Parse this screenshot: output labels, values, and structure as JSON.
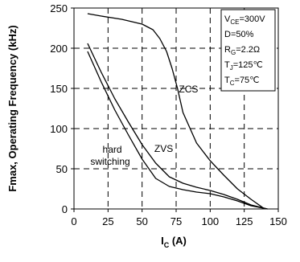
{
  "chart_data": {
    "type": "line",
    "xlabel_main": "I",
    "xlabel_sub": "C",
    "xlabel_unit": " (A)",
    "ylabel": "Fmax, Operating Frequency (kHz)",
    "xlim": [
      0,
      150
    ],
    "ylim": [
      0,
      250
    ],
    "x_ticks": [
      "0",
      "25",
      "50",
      "75",
      "100",
      "125",
      "150"
    ],
    "y_ticks": [
      "0",
      "50",
      "100",
      "150",
      "200",
      "250"
    ],
    "grid": true,
    "series": [
      {
        "name": "ZCS",
        "x": [
          10,
          20,
          35,
          50,
          58,
          63,
          68,
          72,
          76,
          80,
          90,
          100,
          110,
          120,
          130,
          140
        ],
        "y": [
          243,
          240,
          236,
          230,
          223,
          212,
          196,
          175,
          150,
          120,
          82,
          60,
          42,
          25,
          12,
          0
        ]
      },
      {
        "name": "ZVS",
        "x": [
          10,
          20,
          30,
          40,
          50,
          60,
          70,
          80,
          90,
          100,
          110,
          120,
          130,
          142
        ],
        "y": [
          206,
          170,
          137,
          108,
          80,
          57,
          40,
          32,
          27,
          23,
          18,
          12,
          5,
          0
        ]
      },
      {
        "name": "hard switching",
        "x": [
          10,
          20,
          30,
          40,
          50,
          60,
          70,
          80,
          90,
          100,
          110,
          120,
          130,
          142
        ],
        "y": [
          196,
          158,
          123,
          92,
          62,
          38,
          28,
          24,
          21,
          19,
          15,
          10,
          4,
          0
        ]
      }
    ],
    "annotations": {
      "zcs": "ZCS",
      "zvs": "ZVS",
      "hard_line1": "hard",
      "hard_line2": "switching"
    },
    "conditions": [
      {
        "base": "V",
        "sub": "CE",
        "rest": "=300V"
      },
      {
        "base": "D=50%",
        "sub": "",
        "rest": ""
      },
      {
        "base": "R",
        "sub": "G",
        "rest": "=2.2Ω"
      },
      {
        "base": "T",
        "sub": "J",
        "rest": "=125℃"
      },
      {
        "base": "T",
        "sub": "C",
        "rest": "=75℃"
      }
    ]
  }
}
